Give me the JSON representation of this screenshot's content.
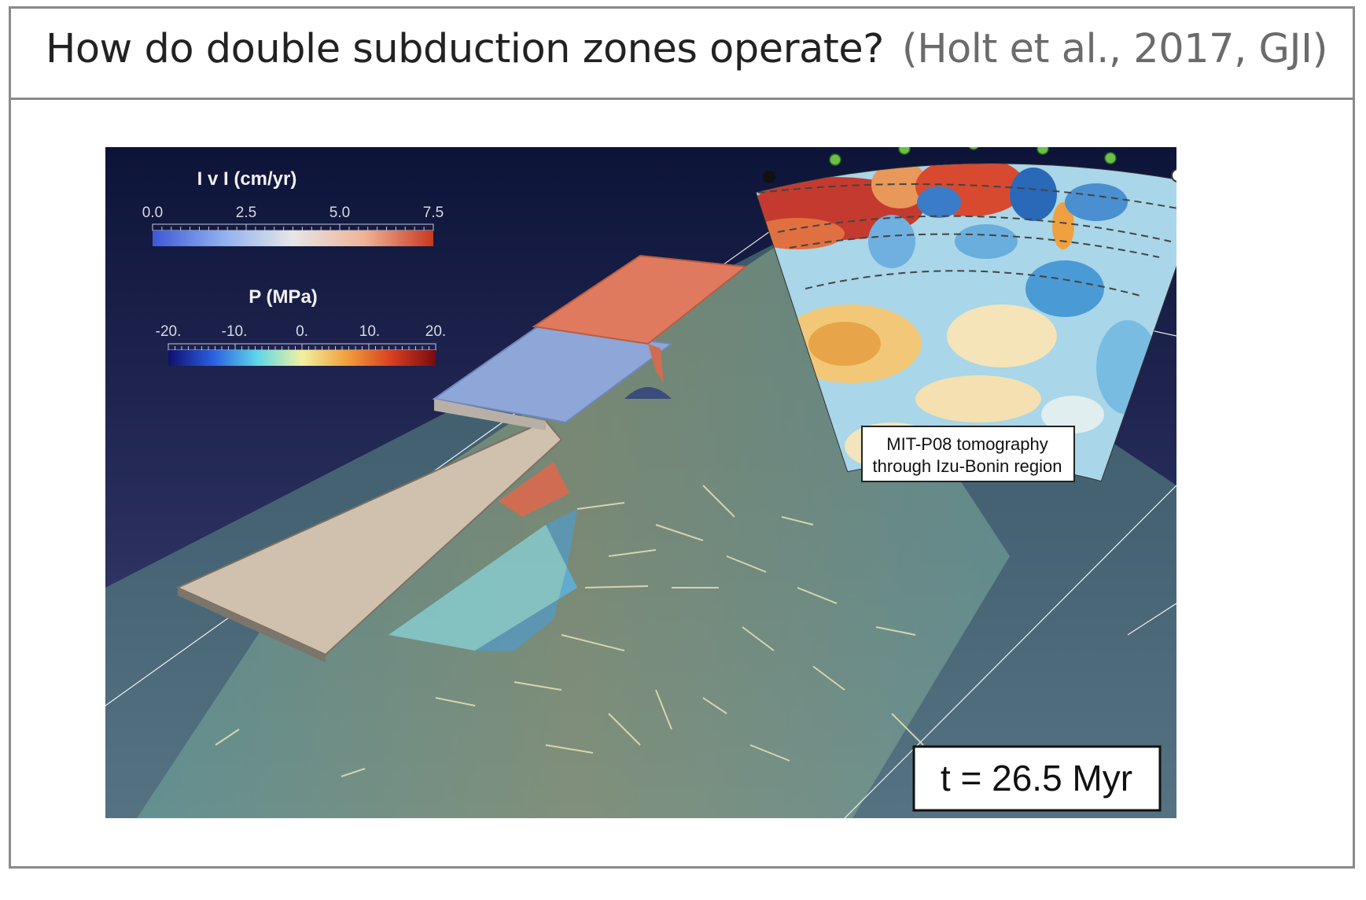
{
  "header": {
    "title": "How do double subduction zones operate?",
    "citation": "(Holt et al., 2017, GJI)"
  },
  "colorbars": {
    "velocity": {
      "title": "I v I    (cm/yr)",
      "ticks": [
        "0.0",
        "2.5",
        "5.0",
        "7.5"
      ],
      "colors": [
        "#3d58d6",
        "#8fb0f0",
        "#e6e6e6",
        "#f0b49a",
        "#c8381e"
      ]
    },
    "pressure": {
      "title": "P  (MPa)",
      "ticks": [
        "-20.",
        "-10.",
        "0.",
        "10.",
        "20."
      ],
      "colors": [
        "#10106e",
        "#2a5fe0",
        "#5fd7e8",
        "#f2f0a0",
        "#f0a03c",
        "#d84020",
        "#7a0a10"
      ]
    }
  },
  "inset": {
    "label_line1": "MIT-P08 tomography",
    "label_line2": "through Izu-Bonin region"
  },
  "time_label": "t = 26.5 Myr"
}
